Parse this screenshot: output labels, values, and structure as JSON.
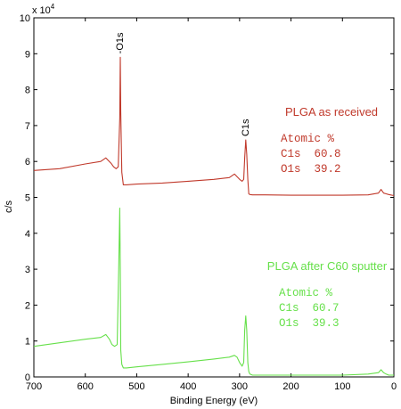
{
  "chart_data": {
    "type": "line",
    "xlabel": "Binding Energy (eV)",
    "ylabel": "c/s",
    "y_multiplier_label": "x 10",
    "y_multiplier_exponent": "4",
    "xlim": [
      700,
      0
    ],
    "ylim": [
      0,
      10
    ],
    "x_reversed": true,
    "x_ticks": [
      "700",
      "600",
      "500",
      "400",
      "300",
      "200",
      "100",
      "0"
    ],
    "y_ticks": [
      "0",
      "1",
      "2",
      "3",
      "4",
      "5",
      "6",
      "7",
      "8",
      "9",
      "10"
    ],
    "grid": false,
    "series": [
      {
        "color": "#c0392b",
        "x": [
          700,
          650,
          600,
          570,
          560,
          550,
          545,
          540,
          536,
          533,
          532,
          531,
          529,
          526,
          520,
          500,
          450,
          400,
          350,
          320,
          310,
          300,
          295,
          292,
          290,
          288,
          286,
          284,
          282,
          280,
          275,
          250,
          200,
          150,
          100,
          50,
          30,
          25,
          20,
          15,
          10,
          0
        ],
        "y": [
          5.75,
          5.8,
          5.93,
          6.0,
          6.1,
          5.95,
          5.85,
          5.8,
          5.85,
          7.2,
          8.9,
          7.4,
          5.7,
          5.35,
          5.35,
          5.37,
          5.4,
          5.45,
          5.5,
          5.55,
          5.65,
          5.5,
          5.45,
          5.5,
          6.1,
          6.6,
          6.2,
          5.5,
          5.1,
          5.08,
          5.07,
          5.07,
          5.06,
          5.06,
          5.06,
          5.07,
          5.12,
          5.22,
          5.12,
          5.1,
          5.08,
          5.05
        ]
      },
      {
        "color": "#66e04a",
        "x": [
          700,
          650,
          600,
          570,
          560,
          553,
          548,
          543,
          538,
          535,
          533,
          532,
          531,
          529,
          526,
          520,
          500,
          450,
          400,
          350,
          320,
          310,
          305,
          300,
          295,
          292,
          290,
          288,
          286,
          284,
          282,
          280,
          275,
          250,
          200,
          150,
          100,
          50,
          30,
          25,
          20,
          15,
          10,
          0
        ],
        "y": [
          0.85,
          0.95,
          1.05,
          1.1,
          1.18,
          1.05,
          0.9,
          0.85,
          0.9,
          3.0,
          4.7,
          3.0,
          0.75,
          0.35,
          0.25,
          0.25,
          0.28,
          0.35,
          0.42,
          0.5,
          0.55,
          0.6,
          0.55,
          0.4,
          0.3,
          0.4,
          1.3,
          1.7,
          1.3,
          0.4,
          0.15,
          0.08,
          0.05,
          0.05,
          0.05,
          0.05,
          0.05,
          0.08,
          0.12,
          0.2,
          0.12,
          0.08,
          0.05,
          0.05
        ]
      }
    ],
    "peak_labels": [
      {
        "text": "-O1s",
        "x": 532,
        "y": 8.9
      },
      {
        "text": "C1s",
        "x": 288,
        "y": 6.6
      }
    ],
    "annotations": [
      {
        "title": "PLGA as received",
        "color": "#c0392b",
        "lines": [
          "Atomic %",
          "C1s  60.8",
          "O1s  39.2"
        ]
      },
      {
        "title": "PLGA after C60 sputter",
        "color": "#66e04a",
        "lines": [
          "Atomic %",
          "C1s  60.7",
          "O1s  39.3"
        ]
      }
    ]
  }
}
